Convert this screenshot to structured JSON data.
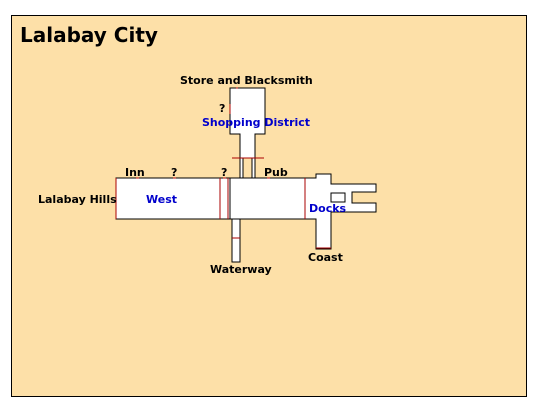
{
  "map": {
    "title": "Lalabay City",
    "colors": {
      "background": "#fde0a8",
      "room_fill": "#ffffff",
      "outline": "#000000",
      "door": "#aa0000",
      "area_label": "#0000cc",
      "exit_label": "#000000"
    },
    "areas": {
      "shopping_district": "Shopping District",
      "west": "West",
      "docks": "Docks"
    },
    "exits": {
      "store_blacksmith": "Store and Blacksmith",
      "lalabay_hills": "Lalabay Hills",
      "inn": "Inn",
      "pub": "Pub",
      "waterway": "Waterway",
      "coast": "Coast",
      "unknown_1": "?",
      "unknown_2": "?",
      "unknown_3": "?"
    }
  }
}
